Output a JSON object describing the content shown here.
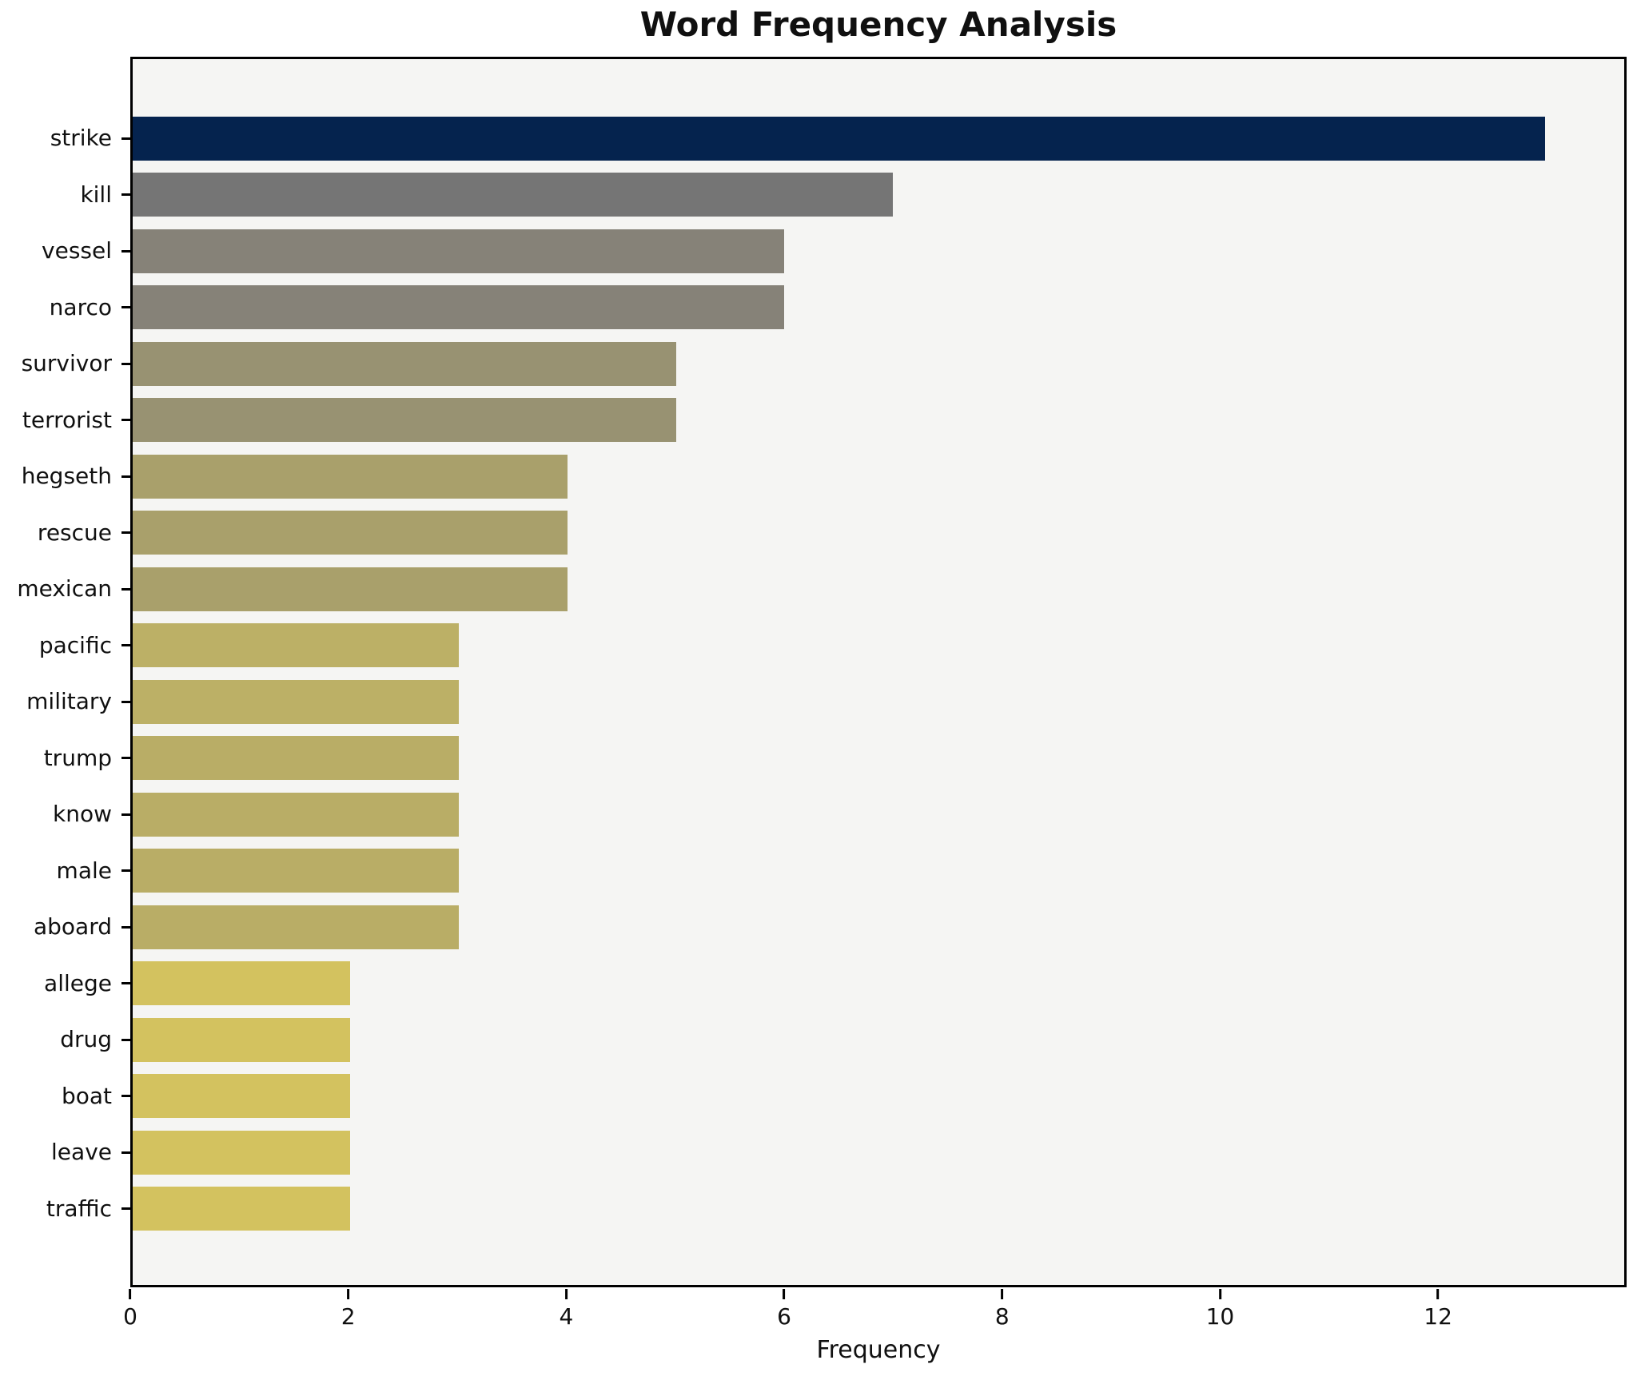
{
  "chart_data": {
    "type": "bar",
    "orientation": "horizontal",
    "title": "Word Frequency Analysis",
    "xlabel": "Frequency",
    "ylabel": "",
    "categories": [
      "strike",
      "kill",
      "vessel",
      "narco",
      "survivor",
      "terrorist",
      "hegseth",
      "rescue",
      "mexican",
      "pacific",
      "military",
      "trump",
      "know",
      "male",
      "aboard",
      "allege",
      "drug",
      "boat",
      "leave",
      "traffic"
    ],
    "values": [
      13,
      7,
      6,
      6,
      5,
      5,
      4,
      4,
      4,
      3,
      3,
      3,
      3,
      3,
      3,
      2,
      2,
      2,
      2,
      2
    ],
    "bar_colors": [
      "#05234e",
      "#757575",
      "#868278",
      "#868278",
      "#989272",
      "#989272",
      "#a9a06b",
      "#a9a06b",
      "#a9a06b",
      "#bcb066",
      "#bcb066",
      "#b9ad66",
      "#b9ad66",
      "#b9ad66",
      "#b9ad66",
      "#d3c25f",
      "#d3c25f",
      "#d3c25f",
      "#d3c25f",
      "#d3c25f"
    ],
    "xlim": [
      0,
      13.73
    ],
    "xticks": [
      0,
      2,
      4,
      6,
      8,
      10,
      12
    ],
    "grid": false,
    "legend": false,
    "plot_background": "#f5f5f3",
    "figure_background": "#ffffff",
    "spine_color": "#000000",
    "highlight_color": "#05234e"
  }
}
